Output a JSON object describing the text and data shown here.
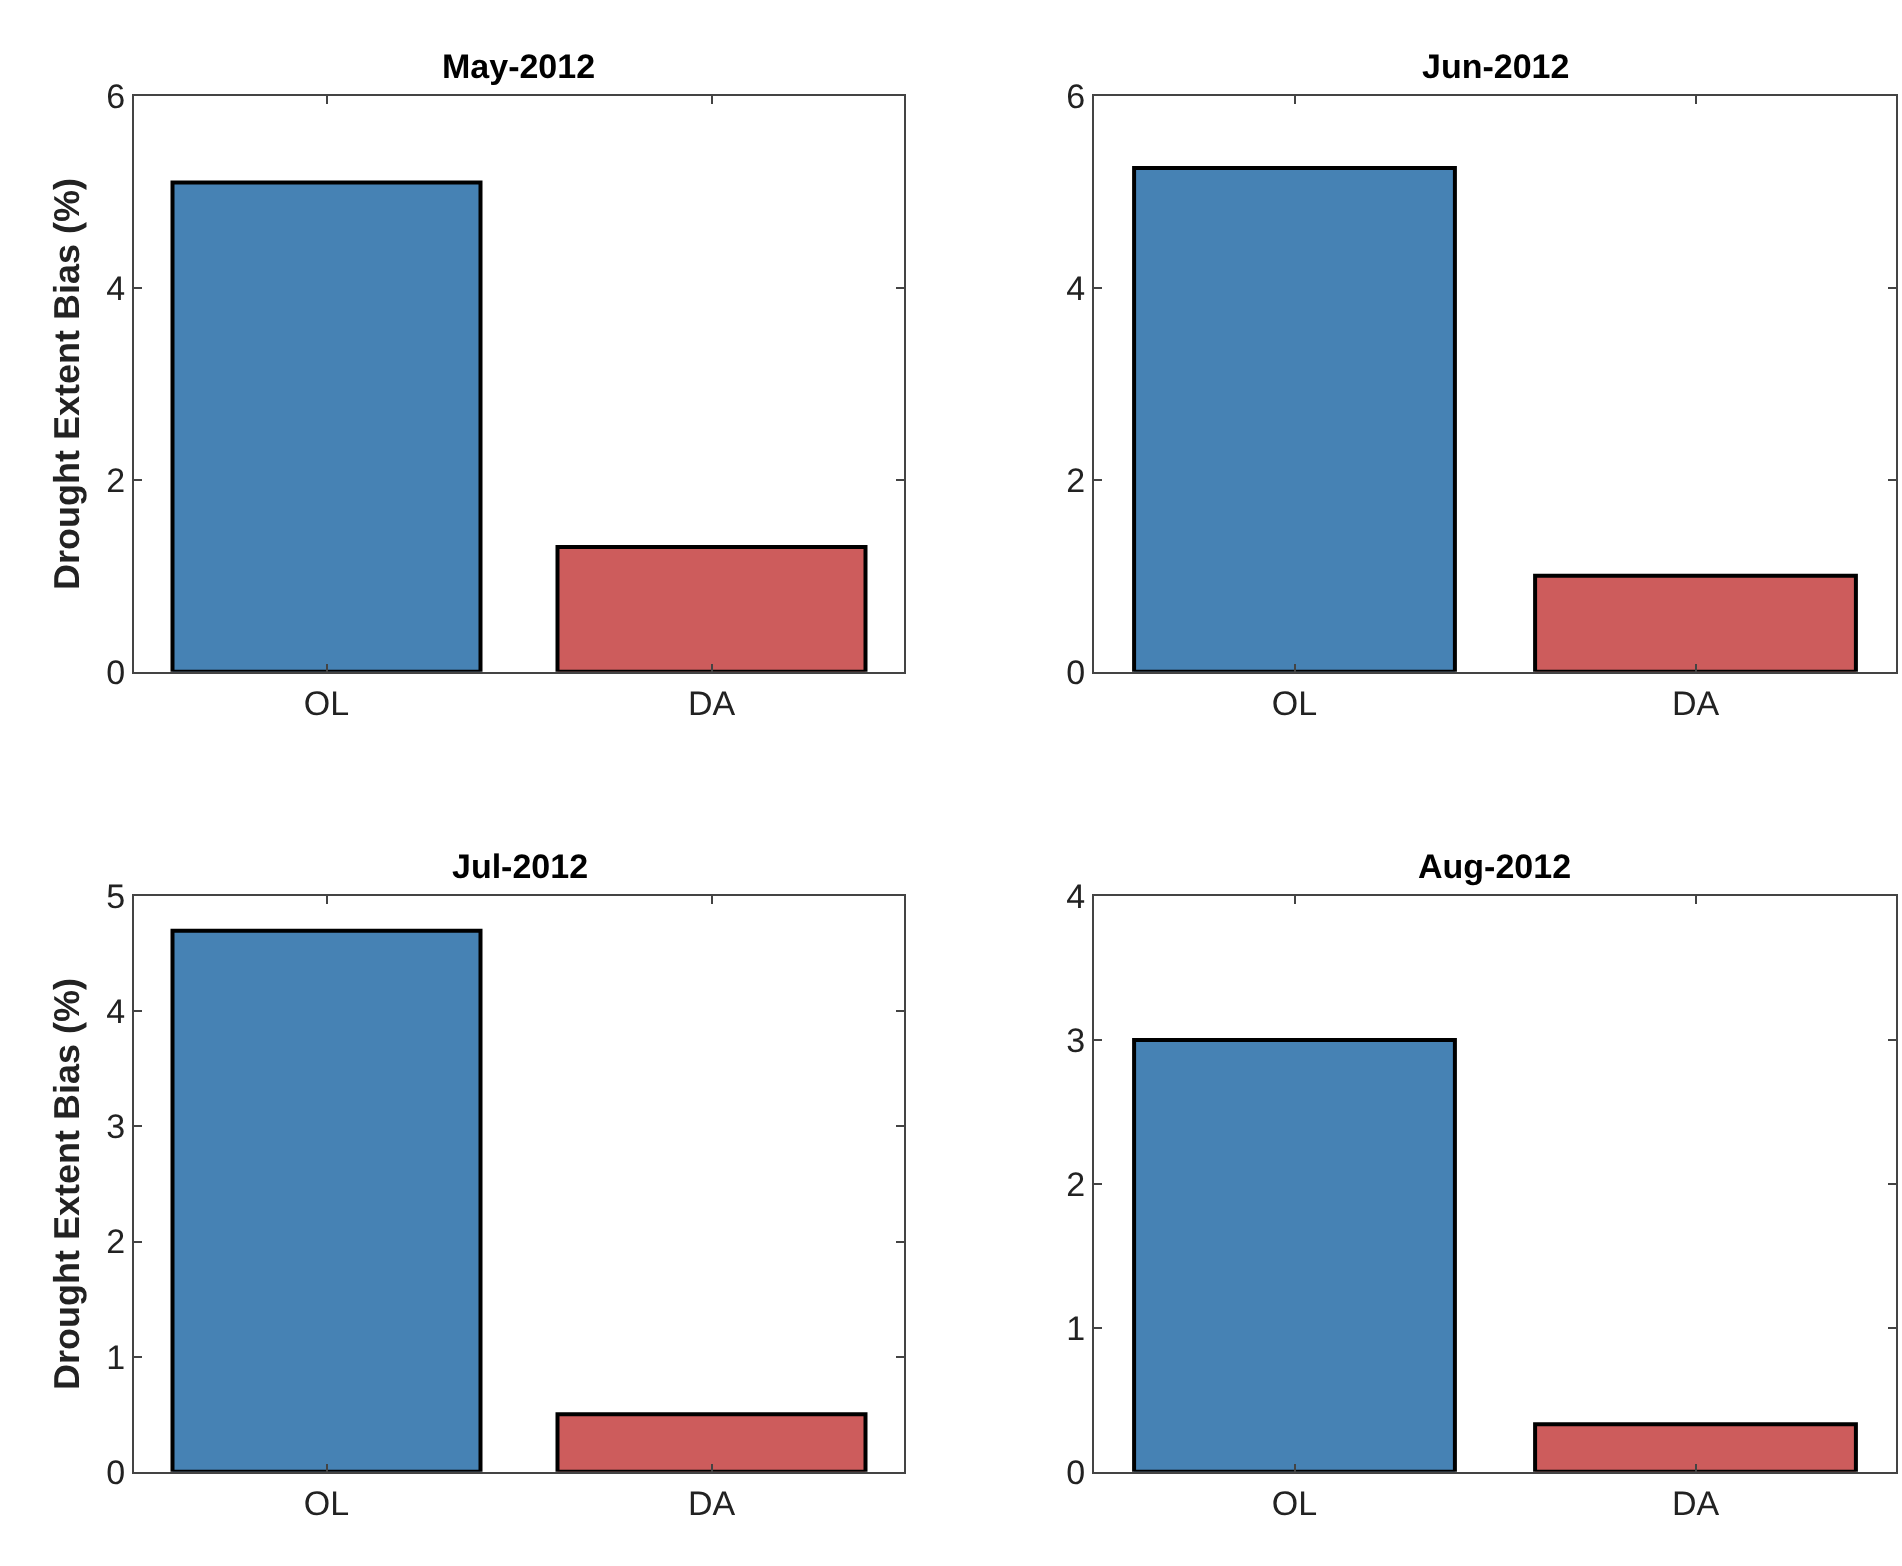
{
  "chart_data": [
    {
      "type": "bar",
      "title": "May-2012",
      "ylabel": "Drought Extent Bias (%)",
      "categories": [
        "OL",
        "DA"
      ],
      "values": [
        5.1,
        1.3
      ],
      "colors": [
        "#4682b4",
        "#cd5c5c"
      ],
      "ylim": [
        0,
        6
      ],
      "yticks": [
        0,
        2,
        4,
        6
      ]
    },
    {
      "type": "bar",
      "title": "Jun-2012",
      "categories": [
        "OL",
        "DA"
      ],
      "values": [
        5.25,
        1.0
      ],
      "colors": [
        "#4682b4",
        "#cd5c5c"
      ],
      "ylim": [
        0,
        6
      ],
      "yticks": [
        0,
        2,
        4,
        6
      ]
    },
    {
      "type": "bar",
      "title": "Jul-2012",
      "ylabel": "Drought Extent Bias (%)",
      "categories": [
        "OL",
        "DA"
      ],
      "values": [
        4.7,
        0.5
      ],
      "colors": [
        "#4682b4",
        "#cd5c5c"
      ],
      "ylim": [
        0,
        5
      ],
      "yticks": [
        0,
        1,
        2,
        3,
        4,
        5
      ]
    },
    {
      "type": "bar",
      "title": "Aug-2012",
      "categories": [
        "OL",
        "DA"
      ],
      "values": [
        3.0,
        0.33
      ],
      "colors": [
        "#4682b4",
        "#cd5c5c"
      ],
      "ylim": [
        0,
        4
      ],
      "yticks": [
        0,
        1,
        2,
        3,
        4
      ]
    }
  ]
}
